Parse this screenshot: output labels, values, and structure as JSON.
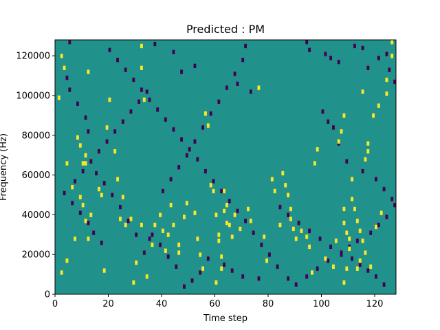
{
  "chart_data": {
    "type": "heatmap",
    "title": "Predicted : PM",
    "xlabel": "Time step",
    "ylabel": "Frequency (Hz)",
    "xlim": [
      0,
      128
    ],
    "ylim": [
      0,
      128000
    ],
    "x_ticks": [
      0,
      20,
      40,
      60,
      80,
      100,
      120
    ],
    "y_ticks": [
      0,
      20000,
      40000,
      60000,
      80000,
      100000,
      120000
    ],
    "grid": false,
    "colormap": "viridis",
    "colors": {
      "background": "#21918c",
      "high": "#fde725",
      "low": "#440154"
    },
    "cells_high": [
      [
        2,
        120
      ],
      [
        3,
        114
      ],
      [
        1,
        99
      ],
      [
        12,
        112
      ],
      [
        10,
        66
      ],
      [
        9,
        75
      ],
      [
        8,
        79
      ],
      [
        4,
        66
      ],
      [
        11,
        66
      ],
      [
        11,
        70
      ],
      [
        6,
        54
      ],
      [
        9,
        49
      ],
      [
        10,
        45
      ],
      [
        11,
        37
      ],
      [
        13,
        40
      ],
      [
        12,
        28
      ],
      [
        7,
        28
      ],
      [
        4,
        17
      ],
      [
        2,
        11
      ],
      [
        18,
        12
      ],
      [
        16,
        53
      ],
      [
        17,
        50
      ],
      [
        19,
        84
      ],
      [
        20,
        98
      ],
      [
        22,
        72
      ],
      [
        23,
        58
      ],
      [
        24,
        38
      ],
      [
        25,
        49
      ],
      [
        26,
        35
      ],
      [
        28,
        38
      ],
      [
        32,
        125
      ],
      [
        32,
        114
      ],
      [
        33,
        98
      ],
      [
        29,
        6
      ],
      [
        32,
        35
      ],
      [
        30,
        16
      ],
      [
        34,
        9
      ],
      [
        36,
        25
      ],
      [
        37,
        35
      ],
      [
        39,
        40
      ],
      [
        40,
        32
      ],
      [
        41,
        22
      ],
      [
        42,
        30
      ],
      [
        43,
        45
      ],
      [
        44,
        35
      ],
      [
        46,
        25
      ],
      [
        46,
        21
      ],
      [
        48,
        39
      ],
      [
        49,
        46
      ],
      [
        52,
        41
      ],
      [
        53,
        28
      ],
      [
        54,
        20
      ],
      [
        55,
        13
      ],
      [
        56,
        91
      ],
      [
        57,
        85
      ],
      [
        58,
        55
      ],
      [
        59,
        52
      ],
      [
        60,
        40
      ],
      [
        61,
        30
      ],
      [
        61,
        27
      ],
      [
        62,
        19
      ],
      [
        60,
        6
      ],
      [
        63,
        52
      ],
      [
        62,
        13
      ],
      [
        64,
        45
      ],
      [
        65,
        35
      ],
      [
        66,
        29
      ],
      [
        67,
        40
      ],
      [
        69,
        33
      ],
      [
        72,
        43
      ],
      [
        73,
        37
      ],
      [
        74,
        128
      ],
      [
        76,
        104
      ],
      [
        78,
        29
      ],
      [
        79,
        17
      ],
      [
        81,
        58
      ],
      [
        82,
        52
      ],
      [
        84,
        35
      ],
      [
        85,
        61
      ],
      [
        86,
        55
      ],
      [
        87,
        50
      ],
      [
        88,
        43
      ],
      [
        88,
        38
      ],
      [
        89,
        33
      ],
      [
        90,
        28
      ],
      [
        92,
        32
      ],
      [
        94,
        29
      ],
      [
        95,
        24
      ],
      [
        96,
        11
      ],
      [
        101,
        18
      ],
      [
        104,
        14
      ],
      [
        105,
        27
      ],
      [
        108,
        43
      ],
      [
        108,
        36
      ],
      [
        109,
        31
      ],
      [
        110,
        23
      ],
      [
        110,
        28
      ],
      [
        111,
        48
      ],
      [
        111,
        58
      ],
      [
        112,
        43
      ],
      [
        113,
        37
      ],
      [
        114,
        32
      ],
      [
        115,
        27
      ],
      [
        116,
        21
      ],
      [
        118,
        14
      ],
      [
        122,
        41
      ],
      [
        124,
        108
      ],
      [
        126,
        127
      ],
      [
        126,
        120
      ],
      [
        108,
        6
      ],
      [
        109,
        13
      ],
      [
        113,
        13
      ],
      [
        114,
        17
      ],
      [
        117,
        76
      ],
      [
        119,
        90
      ],
      [
        121,
        95
      ],
      [
        124,
        101
      ],
      [
        63,
        42
      ],
      [
        64,
        36
      ],
      [
        97,
        66
      ],
      [
        98,
        73
      ],
      [
        106,
        77
      ],
      [
        107,
        82
      ],
      [
        108,
        90
      ],
      [
        115,
        102
      ],
      [
        116,
        68
      ],
      [
        117,
        72
      ],
      [
        120,
        34
      ]
    ],
    "cells_low": [
      [
        5,
        127
      ],
      [
        37,
        126
      ],
      [
        44,
        122
      ],
      [
        47,
        112
      ],
      [
        52,
        115
      ],
      [
        68,
        106
      ],
      [
        71,
        125
      ],
      [
        73,
        102
      ],
      [
        94,
        127
      ],
      [
        95,
        123
      ],
      [
        101,
        121
      ],
      [
        103,
        119
      ],
      [
        106,
        117
      ],
      [
        112,
        125
      ],
      [
        115,
        124
      ],
      [
        117,
        114
      ],
      [
        121,
        119
      ],
      [
        124,
        121
      ],
      [
        125,
        113
      ],
      [
        127,
        107
      ],
      [
        100,
        92
      ],
      [
        102,
        87
      ],
      [
        104,
        84
      ],
      [
        106,
        76
      ],
      [
        109,
        67
      ],
      [
        115,
        62
      ],
      [
        120,
        58
      ],
      [
        123,
        53
      ],
      [
        126,
        48
      ],
      [
        127,
        45
      ],
      [
        124,
        39
      ],
      [
        121,
        35
      ],
      [
        118,
        31
      ],
      [
        113,
        27
      ],
      [
        110,
        24
      ],
      [
        107,
        20
      ],
      [
        102,
        17
      ],
      [
        98,
        13
      ],
      [
        94,
        9
      ],
      [
        90,
        5
      ],
      [
        87,
        8
      ],
      [
        83,
        14
      ],
      [
        80,
        20
      ],
      [
        77,
        25
      ],
      [
        74,
        31
      ],
      [
        71,
        37
      ],
      [
        68,
        42
      ],
      [
        65,
        47
      ],
      [
        62,
        52
      ],
      [
        59,
        57
      ],
      [
        56,
        62
      ],
      [
        53,
        68
      ],
      [
        50,
        73
      ],
      [
        47,
        78
      ],
      [
        44,
        83
      ],
      [
        41,
        88
      ],
      [
        38,
        93
      ],
      [
        35,
        98
      ],
      [
        32,
        103
      ],
      [
        29,
        108
      ],
      [
        26,
        113
      ],
      [
        23,
        118
      ],
      [
        20,
        123
      ],
      [
        17,
        26
      ],
      [
        14,
        31
      ],
      [
        12,
        36
      ],
      [
        9,
        41
      ],
      [
        6,
        46
      ],
      [
        3,
        51
      ],
      [
        7,
        57
      ],
      [
        10,
        62
      ],
      [
        13,
        67
      ],
      [
        16,
        72
      ],
      [
        19,
        77
      ],
      [
        22,
        82
      ],
      [
        25,
        87
      ],
      [
        28,
        92
      ],
      [
        31,
        97
      ],
      [
        34,
        102
      ],
      [
        35,
        28
      ],
      [
        36,
        30
      ],
      [
        40,
        52
      ],
      [
        43,
        58
      ],
      [
        46,
        64
      ],
      [
        49,
        70
      ],
      [
        52,
        77
      ],
      [
        55,
        84
      ],
      [
        58,
        91
      ],
      [
        61,
        97
      ],
      [
        64,
        104
      ],
      [
        67,
        111
      ],
      [
        70,
        118
      ],
      [
        84,
        44
      ],
      [
        87,
        40
      ],
      [
        91,
        36
      ],
      [
        95,
        32
      ],
      [
        99,
        28
      ],
      [
        103,
        24
      ],
      [
        107,
        21
      ],
      [
        111,
        18
      ],
      [
        114,
        15
      ],
      [
        117,
        12
      ],
      [
        120,
        9
      ],
      [
        123,
        5
      ],
      [
        76,
        8
      ],
      [
        70,
        9
      ],
      [
        66,
        12
      ],
      [
        63,
        15
      ],
      [
        57,
        18
      ],
      [
        54,
        11
      ],
      [
        51,
        7
      ],
      [
        48,
        4
      ],
      [
        45,
        14
      ],
      [
        42,
        19
      ],
      [
        39,
        25
      ],
      [
        33,
        21
      ],
      [
        30,
        30
      ],
      [
        27,
        37
      ],
      [
        24,
        44
      ],
      [
        21,
        50
      ],
      [
        18,
        56
      ],
      [
        15,
        61
      ],
      [
        12,
        82
      ],
      [
        11,
        89
      ],
      [
        8,
        96
      ],
      [
        5,
        103
      ],
      [
        4,
        109
      ]
    ]
  }
}
